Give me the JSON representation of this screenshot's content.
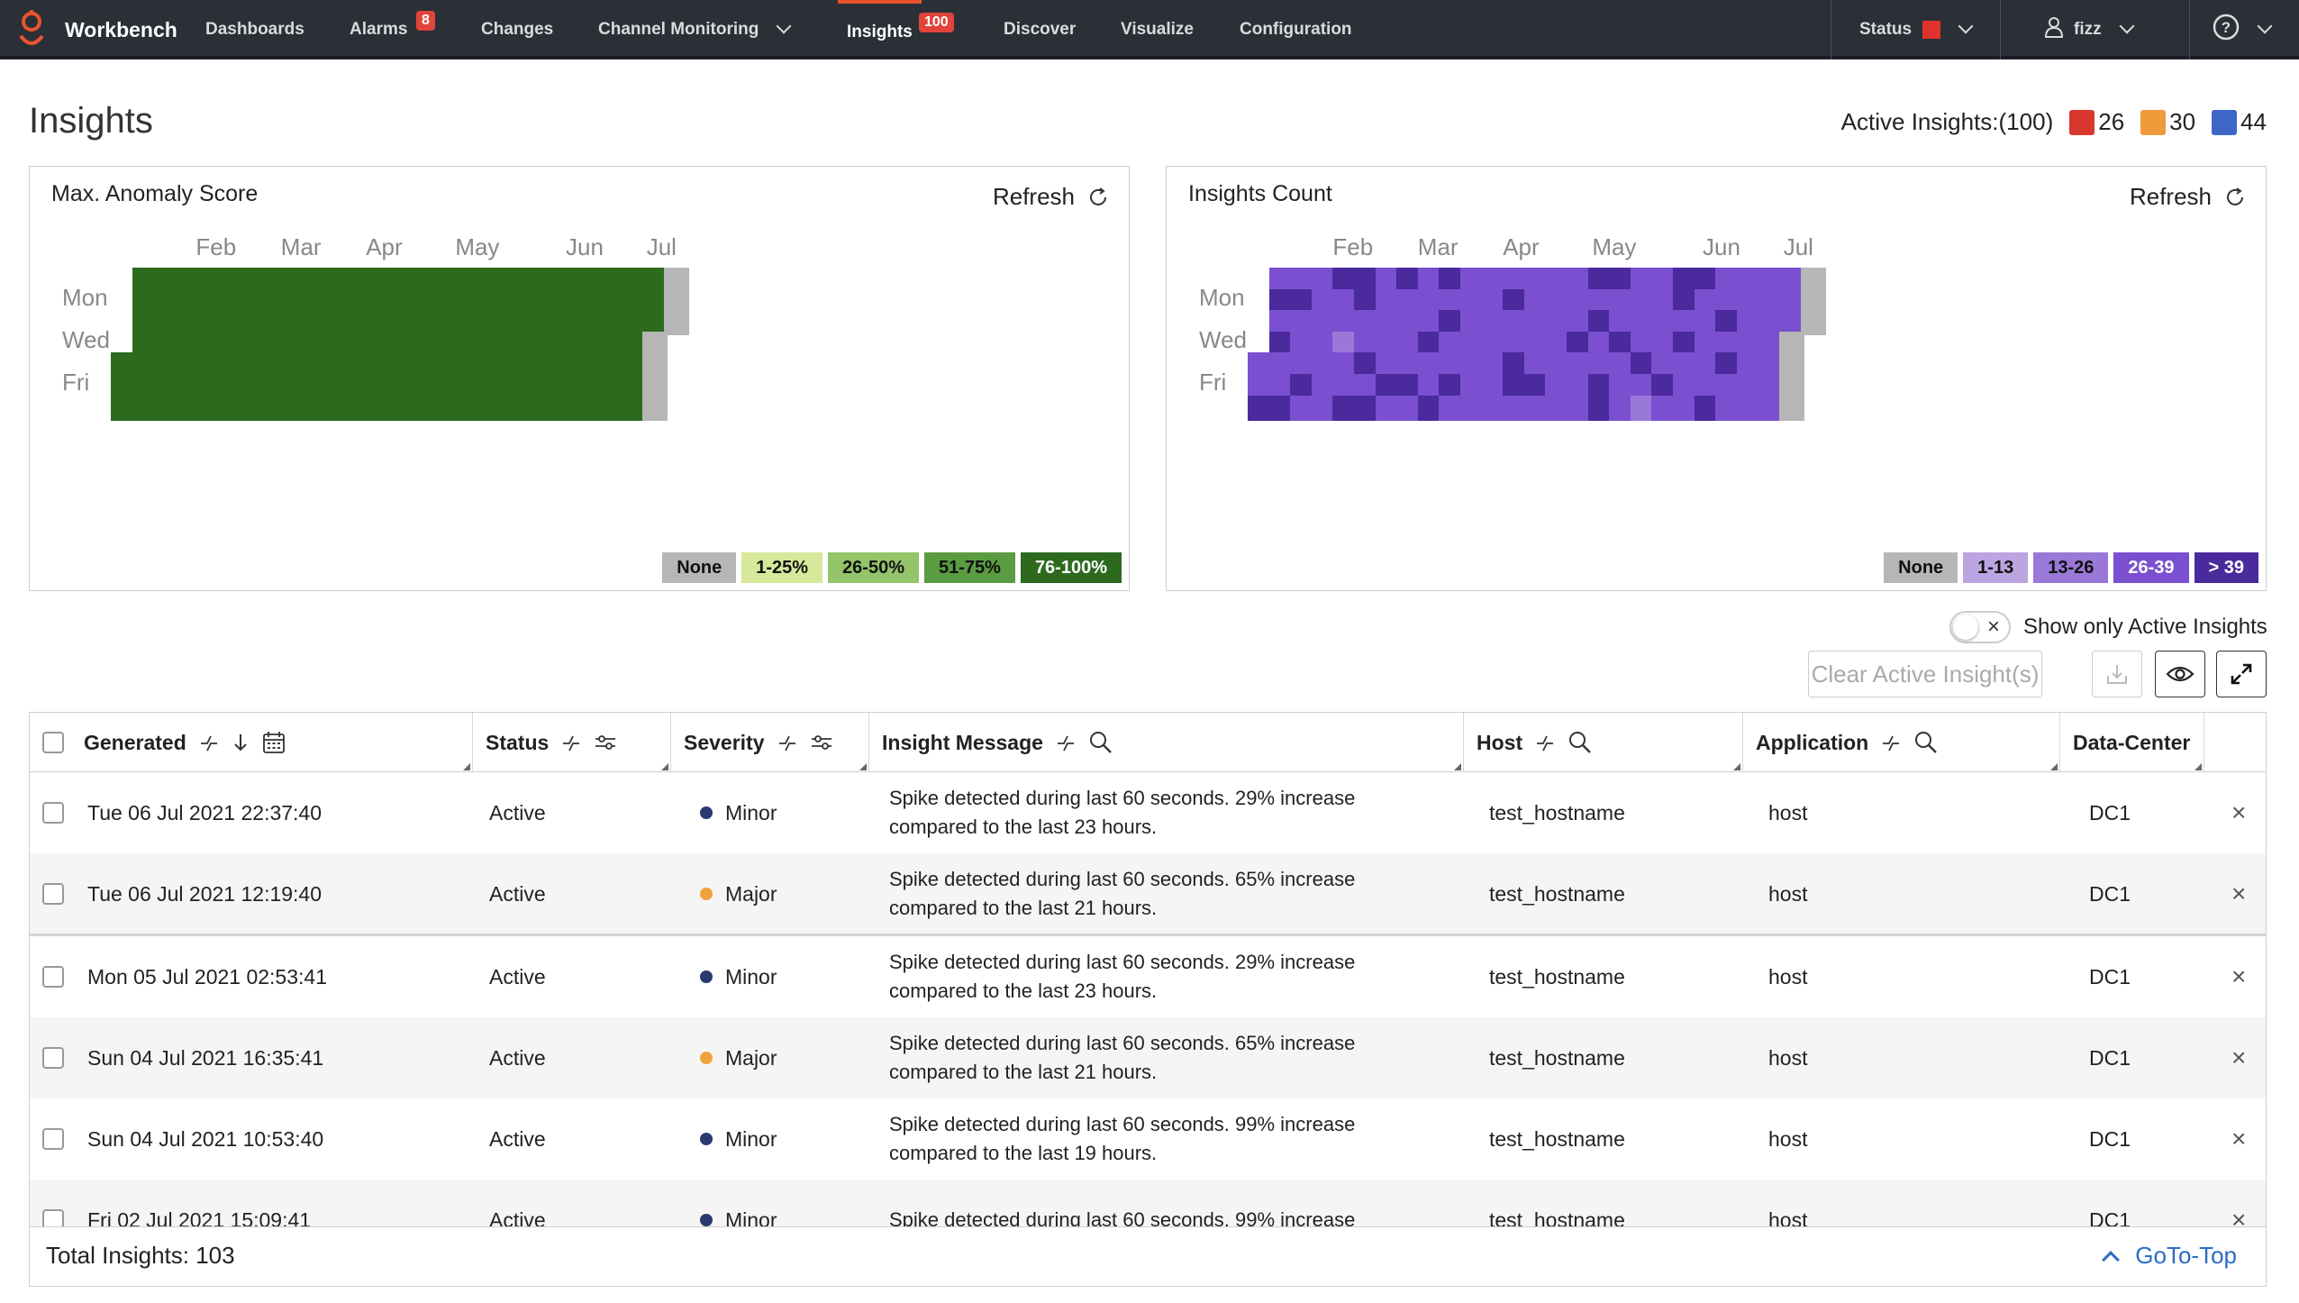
{
  "nav": {
    "brand": "Workbench",
    "items": [
      {
        "label": "Dashboards"
      },
      {
        "label": "Alarms",
        "badge": "8"
      },
      {
        "label": "Changes"
      },
      {
        "label": "Channel Monitoring"
      },
      {
        "label": "Insights",
        "badge": "100",
        "active": true
      },
      {
        "label": "Discover"
      },
      {
        "label": "Visualize"
      },
      {
        "label": "Configuration"
      }
    ],
    "status_label": "Status",
    "user_label": "fizz",
    "help_icon": "help-circle-icon"
  },
  "page": {
    "title": "Insights",
    "active_summary": {
      "label": "Active Insights:(100)",
      "counts": [
        {
          "value": "26",
          "color": "#d9372b"
        },
        {
          "value": "30",
          "color": "#f09a3c"
        },
        {
          "value": "44",
          "color": "#3d66c7"
        }
      ]
    }
  },
  "heatmaps": [
    {
      "title": "Max. Anomaly Score",
      "refresh": "Refresh",
      "months": [
        "Feb",
        "Mar",
        "Apr",
        "May",
        "Jun",
        "Jul"
      ],
      "days": [
        "Mon",
        "Wed",
        "Fri"
      ],
      "palette": [
        "#b6b6b6",
        "#d7e89a",
        "#94c46a",
        "#5a9c41",
        "#2d6a1e"
      ],
      "legend": [
        {
          "label": "None",
          "color": "#b6b6b6"
        },
        {
          "label": "1-25%",
          "color": "#d7e89a"
        },
        {
          "label": "26-50%",
          "color": "#94c46a"
        },
        {
          "label": "51-75%",
          "color": "#5a9c41"
        },
        {
          "label": "76-100%",
          "color": "#2d6a1e",
          "text": "#ffffff"
        }
      ],
      "weeks": [
        [
          null,
          null,
          null,
          null,
          4,
          4,
          4
        ],
        [
          4,
          4,
          4,
          4,
          4,
          4,
          4
        ],
        [
          4,
          4,
          4,
          4,
          4,
          4,
          4
        ],
        [
          4,
          4,
          4,
          4,
          4,
          4,
          4
        ],
        [
          4,
          4,
          4,
          4,
          4,
          4,
          4
        ],
        [
          4,
          4,
          4,
          4,
          4,
          4,
          4
        ],
        [
          4,
          4,
          4,
          4,
          4,
          4,
          4
        ],
        [
          4,
          4,
          4,
          4,
          4,
          4,
          4
        ],
        [
          4,
          4,
          4,
          4,
          4,
          4,
          4
        ],
        [
          4,
          4,
          4,
          4,
          4,
          4,
          4
        ],
        [
          4,
          4,
          4,
          4,
          4,
          4,
          4
        ],
        [
          4,
          4,
          4,
          4,
          4,
          4,
          4
        ],
        [
          4,
          4,
          4,
          4,
          4,
          4,
          4
        ],
        [
          4,
          4,
          4,
          4,
          4,
          4,
          4
        ],
        [
          4,
          4,
          4,
          4,
          4,
          4,
          4
        ],
        [
          4,
          4,
          4,
          4,
          4,
          4,
          4
        ],
        [
          4,
          4,
          4,
          4,
          4,
          4,
          4
        ],
        [
          4,
          4,
          4,
          4,
          4,
          4,
          4
        ],
        [
          4,
          4,
          4,
          4,
          4,
          4,
          4
        ],
        [
          4,
          4,
          4,
          4,
          4,
          4,
          4
        ],
        [
          4,
          4,
          4,
          4,
          4,
          4,
          4
        ],
        [
          4,
          4,
          4,
          4,
          4,
          4,
          4
        ],
        [
          4,
          4,
          4,
          4,
          4,
          4,
          4
        ],
        [
          4,
          4,
          4,
          4,
          4,
          4,
          4
        ],
        [
          4,
          4,
          4,
          4,
          4,
          4,
          4
        ],
        [
          4,
          4,
          4,
          0,
          0,
          0,
          0
        ],
        [
          0,
          0,
          0,
          null,
          null,
          null,
          null
        ]
      ]
    },
    {
      "title": "Insights Count",
      "refresh": "Refresh",
      "months": [
        "Feb",
        "Mar",
        "Apr",
        "May",
        "Jun",
        "Jul"
      ],
      "days": [
        "Mon",
        "Wed",
        "Fri"
      ],
      "palette": [
        "#b6b6b6",
        "#bca4e0",
        "#9a78d8",
        "#7a4fd0",
        "#4a2a9c"
      ],
      "legend": [
        {
          "label": "None",
          "color": "#b6b6b6"
        },
        {
          "label": "1-13",
          "color": "#bca4e0"
        },
        {
          "label": "13-26",
          "color": "#9a78d8"
        },
        {
          "label": "26-39",
          "color": "#7a4fd0",
          "text": "#ffffff"
        },
        {
          "label": "> 39",
          "color": "#4a2a9c",
          "text": "#ffffff"
        }
      ],
      "weeks": [
        [
          null,
          null,
          null,
          null,
          3,
          3,
          4
        ],
        [
          3,
          4,
          3,
          4,
          3,
          3,
          4
        ],
        [
          3,
          4,
          3,
          3,
          3,
          4,
          3
        ],
        [
          3,
          3,
          3,
          3,
          3,
          3,
          3
        ],
        [
          4,
          3,
          3,
          2,
          3,
          3,
          4
        ],
        [
          4,
          4,
          3,
          3,
          4,
          3,
          4
        ],
        [
          3,
          3,
          3,
          3,
          3,
          4,
          3
        ],
        [
          4,
          3,
          3,
          3,
          3,
          4,
          3
        ],
        [
          3,
          3,
          3,
          4,
          3,
          3,
          4
        ],
        [
          4,
          3,
          4,
          3,
          3,
          4,
          3
        ],
        [
          3,
          3,
          3,
          3,
          3,
          3,
          3
        ],
        [
          3,
          3,
          3,
          3,
          3,
          3,
          3
        ],
        [
          3,
          4,
          3,
          3,
          4,
          4,
          3
        ],
        [
          3,
          3,
          3,
          3,
          3,
          4,
          3
        ],
        [
          3,
          3,
          3,
          3,
          3,
          3,
          3
        ],
        [
          3,
          3,
          3,
          4,
          3,
          3,
          3
        ],
        [
          4,
          3,
          4,
          3,
          3,
          4,
          4
        ],
        [
          4,
          3,
          3,
          4,
          3,
          3,
          3
        ],
        [
          3,
          3,
          3,
          3,
          4,
          3,
          2
        ],
        [
          3,
          3,
          3,
          3,
          3,
          4,
          3
        ],
        [
          4,
          4,
          3,
          4,
          3,
          3,
          3
        ],
        [
          4,
          3,
          3,
          3,
          3,
          3,
          4
        ],
        [
          3,
          3,
          4,
          3,
          4,
          3,
          3
        ],
        [
          3,
          3,
          3,
          3,
          3,
          3,
          3
        ],
        [
          3,
          3,
          3,
          3,
          3,
          3,
          3
        ],
        [
          3,
          3,
          3,
          0,
          0,
          0,
          0
        ],
        [
          0,
          0,
          0,
          null,
          null,
          null,
          null
        ]
      ]
    }
  ],
  "controls": {
    "toggle_label": "Show only Active Insights",
    "clear_button": "Clear Active Insight(s)"
  },
  "table": {
    "columns": [
      "Generated",
      "Status",
      "Severity",
      "Insight Message",
      "Host",
      "Application",
      "Data-Center"
    ],
    "rows": [
      {
        "generated": "Tue 06 Jul 2021 22:37:40",
        "status": "Active",
        "severity": "Minor",
        "severity_color": "#2a3a6e",
        "message1": "Spike detected during last 60 seconds. 29% increase",
        "message2": "compared to the last 23 hours.",
        "host": "test_hostname",
        "application": "host",
        "dc": "DC1"
      },
      {
        "generated": "Tue 06 Jul 2021 12:19:40",
        "status": "Active",
        "severity": "Major",
        "severity_color": "#f0a33a",
        "message1": "Spike detected during last 60 seconds. 65% increase",
        "message2": "compared to the last 21 hours.",
        "host": "test_hostname",
        "application": "host",
        "dc": "DC1"
      },
      {
        "generated": "Mon 05 Jul 2021 02:53:41",
        "status": "Active",
        "severity": "Minor",
        "severity_color": "#2a3a6e",
        "message1": "Spike detected during last 60 seconds. 29% increase",
        "message2": "compared to the last 23 hours.",
        "host": "test_hostname",
        "application": "host",
        "dc": "DC1"
      },
      {
        "generated": "Sun 04 Jul 2021 16:35:41",
        "status": "Active",
        "severity": "Major",
        "severity_color": "#f0a33a",
        "message1": "Spike detected during last 60 seconds. 65% increase",
        "message2": "compared to the last 21 hours.",
        "host": "test_hostname",
        "application": "host",
        "dc": "DC1"
      },
      {
        "generated": "Sun 04 Jul 2021 10:53:40",
        "status": "Active",
        "severity": "Minor",
        "severity_color": "#2a3a6e",
        "message1": "Spike detected during last 60 seconds. 99% increase",
        "message2": "compared to the last 19 hours.",
        "host": "test_hostname",
        "application": "host",
        "dc": "DC1"
      },
      {
        "generated": "Fri 02 Jul 2021 15:09:41",
        "status": "Active",
        "severity": "Minor",
        "severity_color": "#2a3a6e",
        "message1": "Spike detected during last 60 seconds. 99% increase",
        "message2": "",
        "host": "test_hostname",
        "application": "host",
        "dc": "DC1"
      }
    ],
    "total": "Total Insights: 103",
    "goto_top": "GoTo-Top"
  }
}
